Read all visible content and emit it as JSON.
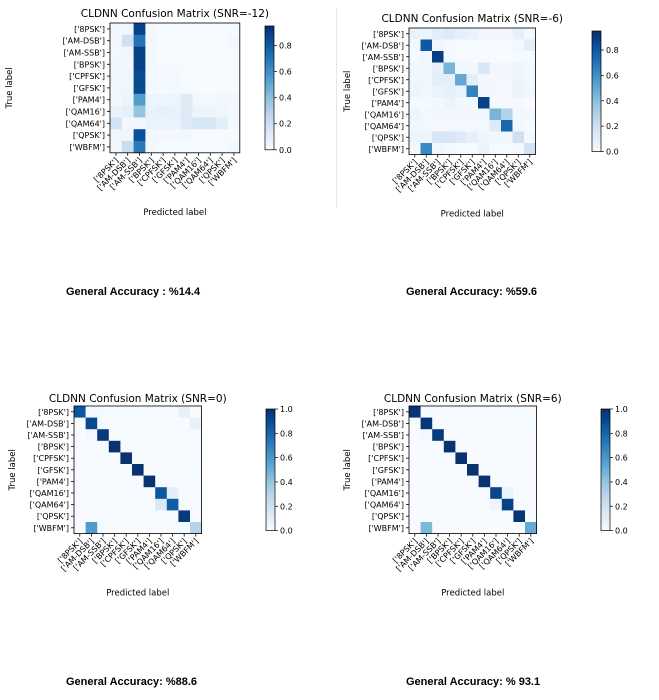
{
  "labels": [
    "['8PSK']",
    "['AM-DSB']",
    "['AM-SSB']",
    "['BPSK']",
    "['CPFSK']",
    "['GFSK']",
    "['PAM4']",
    "['QAM16']",
    "['QAM64']",
    "['QPSK']",
    "['WBFM']"
  ],
  "chart_data": [
    {
      "type": "heatmap",
      "title": "CLDNN Confusion Matrix (SNR=-12)",
      "xlabel": "Predicted label",
      "ylabel": "True label",
      "colorbar_ticks": [
        0.0,
        0.2,
        0.4,
        0.6,
        0.8
      ],
      "vmin": 0,
      "vmax": 0.95,
      "accuracy_text": "General Accuracy : %14.4",
      "matrix": [
        [
          0.03,
          0.04,
          0.88,
          0.02,
          0.01,
          0.01,
          0.0,
          0.0,
          0.0,
          0.0,
          0.01
        ],
        [
          0.03,
          0.2,
          0.7,
          0.02,
          0.01,
          0.01,
          0.01,
          0.0,
          0.0,
          0.0,
          0.02
        ],
        [
          0.02,
          0.04,
          0.88,
          0.02,
          0.01,
          0.01,
          0.01,
          0.0,
          0.0,
          0.0,
          0.01
        ],
        [
          0.03,
          0.03,
          0.88,
          0.02,
          0.01,
          0.01,
          0.01,
          0.0,
          0.0,
          0.0,
          0.01
        ],
        [
          0.03,
          0.04,
          0.85,
          0.02,
          0.02,
          0.02,
          0.01,
          0.0,
          0.0,
          0.0,
          0.01
        ],
        [
          0.03,
          0.04,
          0.86,
          0.02,
          0.01,
          0.02,
          0.01,
          0.0,
          0.0,
          0.0,
          0.01
        ],
        [
          0.03,
          0.05,
          0.55,
          0.05,
          0.05,
          0.05,
          0.12,
          0.02,
          0.02,
          0.03,
          0.03
        ],
        [
          0.06,
          0.08,
          0.38,
          0.07,
          0.08,
          0.07,
          0.12,
          0.05,
          0.05,
          0.04,
          0.02
        ],
        [
          0.18,
          0.03,
          0.04,
          0.06,
          0.06,
          0.06,
          0.13,
          0.15,
          0.15,
          0.1,
          0.02
        ],
        [
          0.04,
          0.04,
          0.83,
          0.03,
          0.02,
          0.02,
          0.03,
          0.0,
          0.0,
          0.01,
          0.01
        ],
        [
          0.03,
          0.22,
          0.68,
          0.02,
          0.01,
          0.01,
          0.01,
          0.0,
          0.0,
          0.0,
          0.02
        ]
      ]
    },
    {
      "type": "heatmap",
      "title": "CLDNN Confusion Matrix (SNR=-6)",
      "xlabel": "Predicted label",
      "ylabel": "True label",
      "colorbar_ticks": [
        0.0,
        0.2,
        0.4,
        0.6,
        0.8
      ],
      "vmin": 0,
      "vmax": 0.95,
      "accuracy_text": "General Accuracy: %59.6",
      "matrix": [
        [
          0.06,
          0.05,
          0.1,
          0.12,
          0.08,
          0.06,
          0.03,
          0.03,
          0.03,
          0.08,
          0.02
        ],
        [
          0.02,
          0.8,
          0.04,
          0.02,
          0.01,
          0.01,
          0.01,
          0.01,
          0.01,
          0.02,
          0.1
        ],
        [
          0.01,
          0.04,
          0.9,
          0.02,
          0.01,
          0.01,
          0.01,
          0.0,
          0.0,
          0.01,
          0.01
        ],
        [
          0.04,
          0.04,
          0.08,
          0.45,
          0.04,
          0.03,
          0.15,
          0.03,
          0.03,
          0.05,
          0.02
        ],
        [
          0.04,
          0.04,
          0.1,
          0.1,
          0.5,
          0.1,
          0.03,
          0.02,
          0.02,
          0.05,
          0.02
        ],
        [
          0.05,
          0.04,
          0.06,
          0.08,
          0.06,
          0.65,
          0.03,
          0.02,
          0.02,
          0.06,
          0.04
        ],
        [
          0.01,
          0.01,
          0.02,
          0.05,
          0.02,
          0.02,
          0.88,
          0.01,
          0.01,
          0.02,
          0.0
        ],
        [
          0.05,
          0.02,
          0.03,
          0.03,
          0.03,
          0.03,
          0.03,
          0.45,
          0.3,
          0.03,
          0.02
        ],
        [
          0.03,
          0.02,
          0.02,
          0.02,
          0.02,
          0.02,
          0.02,
          0.12,
          0.75,
          0.02,
          0.01
        ],
        [
          0.05,
          0.05,
          0.15,
          0.15,
          0.12,
          0.08,
          0.04,
          0.03,
          0.03,
          0.2,
          0.02
        ],
        [
          0.02,
          0.62,
          0.04,
          0.02,
          0.01,
          0.01,
          0.06,
          0.01,
          0.01,
          0.02,
          0.18
        ]
      ]
    },
    {
      "type": "heatmap",
      "title": "CLDNN Confusion Matrix (SNR=0)",
      "xlabel": "Predicted label",
      "ylabel": "True label",
      "colorbar_ticks": [
        0.0,
        0.2,
        0.4,
        0.6,
        0.8,
        1.0
      ],
      "vmin": 0,
      "vmax": 1.0,
      "accuracy_text": "General Accuracy: %88.6",
      "matrix": [
        [
          0.85,
          0.02,
          0.01,
          0.01,
          0.01,
          0.01,
          0.01,
          0.0,
          0.0,
          0.08,
          0.0
        ],
        [
          0.0,
          0.9,
          0.01,
          0.0,
          0.0,
          0.0,
          0.0,
          0.0,
          0.0,
          0.0,
          0.08
        ],
        [
          0.0,
          0.02,
          0.96,
          0.0,
          0.0,
          0.0,
          0.0,
          0.0,
          0.0,
          0.01,
          0.01
        ],
        [
          0.0,
          0.0,
          0.0,
          0.99,
          0.0,
          0.0,
          0.0,
          0.0,
          0.0,
          0.01,
          0.0
        ],
        [
          0.0,
          0.0,
          0.0,
          0.0,
          0.99,
          0.0,
          0.0,
          0.0,
          0.0,
          0.0,
          0.0
        ],
        [
          0.0,
          0.0,
          0.0,
          0.0,
          0.0,
          0.99,
          0.0,
          0.0,
          0.0,
          0.0,
          0.01
        ],
        [
          0.0,
          0.0,
          0.0,
          0.0,
          0.0,
          0.0,
          0.99,
          0.0,
          0.0,
          0.0,
          0.0
        ],
        [
          0.0,
          0.01,
          0.0,
          0.0,
          0.0,
          0.0,
          0.0,
          0.85,
          0.1,
          0.01,
          0.0
        ],
        [
          0.0,
          0.0,
          0.0,
          0.0,
          0.0,
          0.0,
          0.0,
          0.15,
          0.83,
          0.01,
          0.0
        ],
        [
          0.0,
          0.0,
          0.01,
          0.01,
          0.0,
          0.0,
          0.0,
          0.0,
          0.0,
          0.96,
          0.0
        ],
        [
          0.0,
          0.58,
          0.01,
          0.0,
          0.0,
          0.0,
          0.01,
          0.0,
          0.0,
          0.01,
          0.3
        ]
      ]
    },
    {
      "type": "heatmap",
      "title": "CLDNN Confusion Matrix (SNR=6)",
      "xlabel": "Predicted label",
      "ylabel": "True label",
      "colorbar_ticks": [
        0.0,
        0.2,
        0.4,
        0.6,
        0.8,
        1.0
      ],
      "vmin": 0,
      "vmax": 1.0,
      "accuracy_text": "General Accuracy: % 93.1",
      "matrix": [
        [
          0.98,
          0.0,
          0.0,
          0.0,
          0.0,
          0.0,
          0.0,
          0.0,
          0.0,
          0.01,
          0.0
        ],
        [
          0.0,
          0.98,
          0.0,
          0.0,
          0.0,
          0.0,
          0.0,
          0.0,
          0.0,
          0.0,
          0.01
        ],
        [
          0.0,
          0.02,
          0.96,
          0.0,
          0.0,
          0.0,
          0.01,
          0.0,
          0.0,
          0.01,
          0.0
        ],
        [
          0.0,
          0.0,
          0.0,
          0.99,
          0.0,
          0.0,
          0.0,
          0.0,
          0.0,
          0.0,
          0.0
        ],
        [
          0.0,
          0.0,
          0.0,
          0.0,
          0.99,
          0.0,
          0.0,
          0.0,
          0.0,
          0.0,
          0.0
        ],
        [
          0.0,
          0.0,
          0.0,
          0.0,
          0.0,
          0.99,
          0.0,
          0.0,
          0.0,
          0.0,
          0.0
        ],
        [
          0.0,
          0.0,
          0.0,
          0.0,
          0.0,
          0.0,
          0.99,
          0.0,
          0.0,
          0.0,
          0.0
        ],
        [
          0.0,
          0.0,
          0.0,
          0.0,
          0.0,
          0.0,
          0.0,
          0.92,
          0.06,
          0.0,
          0.0
        ],
        [
          0.0,
          0.0,
          0.0,
          0.0,
          0.0,
          0.0,
          0.0,
          0.05,
          0.93,
          0.0,
          0.0
        ],
        [
          0.0,
          0.0,
          0.01,
          0.0,
          0.0,
          0.0,
          0.0,
          0.0,
          0.0,
          0.98,
          0.0
        ],
        [
          0.0,
          0.45,
          0.0,
          0.0,
          0.0,
          0.0,
          0.0,
          0.0,
          0.0,
          0.0,
          0.52
        ]
      ]
    }
  ]
}
